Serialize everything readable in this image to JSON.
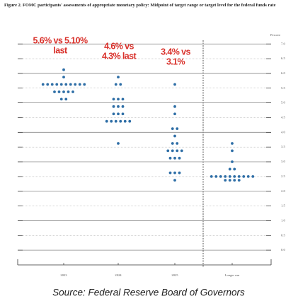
{
  "chart_data": {
    "type": "dot",
    "title": "Figure 2. FOMC participants' assessments of appropriate monetary policy: Midpoint of target range or target level for the federal funds rate",
    "y_label": "Percent",
    "categories": [
      "2023",
      "2024",
      "2025",
      "Longer run"
    ],
    "values": [
      [
        6.125,
        5.875,
        5.625,
        5.625,
        5.625,
        5.625,
        5.625,
        5.625,
        5.625,
        5.625,
        5.625,
        5.625,
        5.375,
        5.375,
        5.375,
        5.375,
        5.375,
        5.125,
        5.125
      ],
      [
        5.875,
        5.625,
        5.625,
        5.125,
        5.125,
        5.125,
        4.875,
        4.875,
        4.875,
        4.625,
        4.625,
        4.625,
        4.375,
        4.375,
        4.375,
        4.375,
        4.375,
        4.375,
        3.625
      ],
      [
        5.625,
        4.875,
        4.625,
        4.125,
        4.125,
        3.875,
        3.625,
        3.625,
        3.375,
        3.375,
        3.375,
        3.375,
        3.125,
        3.125,
        3.125,
        2.625,
        2.625,
        2.625,
        2.375
      ],
      [
        3.625,
        3.375,
        3.0,
        2.75,
        2.75,
        2.5,
        2.5,
        2.5,
        2.5,
        2.5,
        2.5,
        2.5,
        2.5,
        2.5,
        2.5,
        2.375,
        2.375,
        2.375,
        2.375
      ]
    ],
    "color": "#2e6ea6",
    "annotations": [
      [
        "5.6% vs 5.10%",
        "last"
      ],
      [
        "4.6% vs",
        "4.3% last"
      ],
      [
        "3.4% vs",
        "3.1%"
      ]
    ],
    "annotation_color": "#d9312b",
    "ylim": [
      -0.5,
      7.125
    ],
    "yticks": [
      {
        "value": 0,
        "label": "0.0"
      },
      {
        "value": 0.5,
        "label": "0.5"
      },
      {
        "value": 1,
        "label": "1.0"
      },
      {
        "value": 1.5,
        "label": "1.5"
      },
      {
        "value": 2,
        "label": "2.0"
      },
      {
        "value": 2.5,
        "label": "2.5"
      },
      {
        "value": 3,
        "label": "3.0"
      },
      {
        "value": 3.5,
        "label": "3.5"
      },
      {
        "value": 4,
        "label": "4.0"
      },
      {
        "value": 4.5,
        "label": "4.5"
      },
      {
        "value": 5,
        "label": "5.0"
      },
      {
        "value": 5.5,
        "label": "5.5"
      },
      {
        "value": 6,
        "label": "6.0"
      },
      {
        "value": 6.5,
        "label": "6.5"
      },
      {
        "value": 7,
        "label": "7.0"
      }
    ],
    "grid": true,
    "source": "Source: Federal Reserve Board of Governors"
  }
}
